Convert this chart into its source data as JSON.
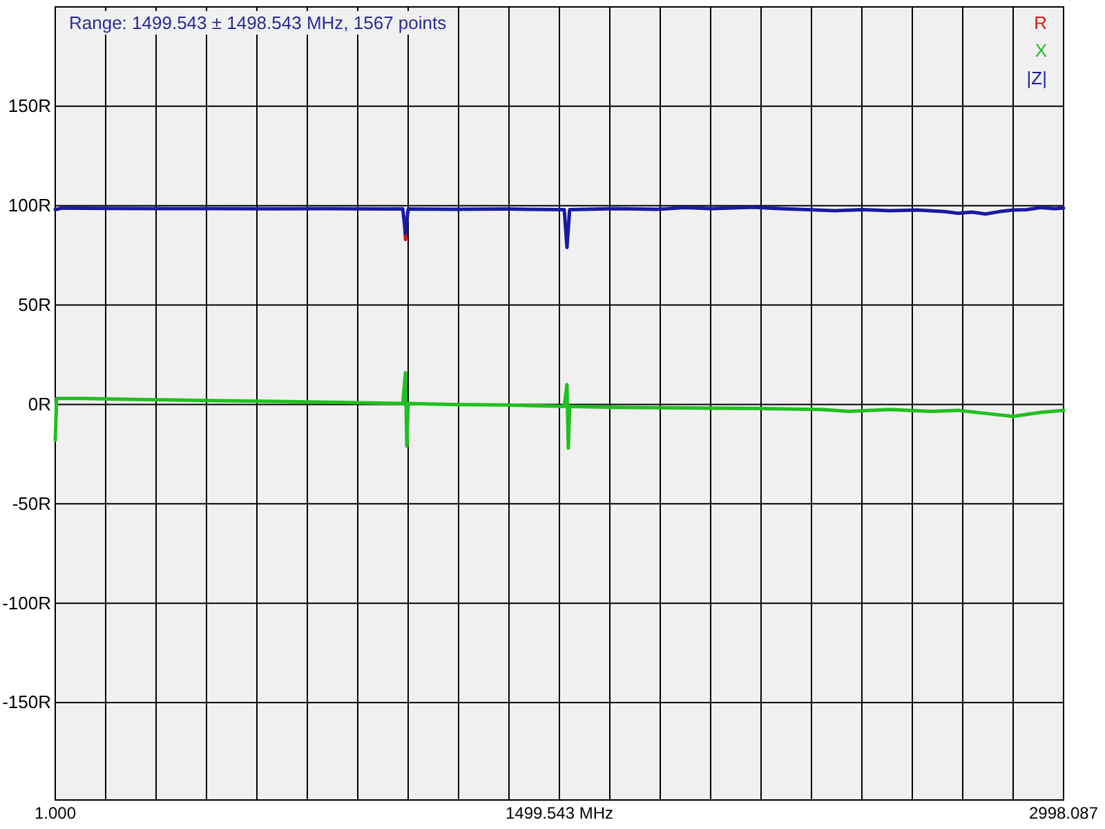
{
  "chart_data": {
    "type": "line",
    "title": "Range: 1499.543 ± 1498.543 MHz, 1567 points",
    "xlim": [
      1.0,
      2998.087
    ],
    "xticks": [
      {
        "value": 1.0,
        "label": "1.000"
      },
      {
        "value": 150.854,
        "label": null
      },
      {
        "value": 300.709,
        "label": null
      },
      {
        "value": 450.563,
        "label": null
      },
      {
        "value": 600.417,
        "label": null
      },
      {
        "value": 750.272,
        "label": null
      },
      {
        "value": 900.126,
        "label": null
      },
      {
        "value": 1049.98,
        "label": null
      },
      {
        "value": 1199.835,
        "label": null
      },
      {
        "value": 1349.689,
        "label": null
      },
      {
        "value": 1499.543,
        "label": "1499.543 MHz"
      },
      {
        "value": 1649.398,
        "label": null
      },
      {
        "value": 1799.252,
        "label": null
      },
      {
        "value": 1949.106,
        "label": null
      },
      {
        "value": 2098.961,
        "label": null
      },
      {
        "value": 2248.815,
        "label": null
      },
      {
        "value": 2398.669,
        "label": null
      },
      {
        "value": 2548.524,
        "label": null
      },
      {
        "value": 2698.378,
        "label": null
      },
      {
        "value": 2848.233,
        "label": null
      },
      {
        "value": 2998.087,
        "label": "2998.087"
      }
    ],
    "ylim": [
      -199,
      200
    ],
    "yticks": [
      {
        "value": -150,
        "label": "-150R"
      },
      {
        "value": -100,
        "label": "-100R"
      },
      {
        "value": -50,
        "label": "-50R"
      },
      {
        "value": 0,
        "label": "0R"
      },
      {
        "value": 50,
        "label": "50R"
      },
      {
        "value": 100,
        "label": "100R"
      },
      {
        "value": 150,
        "label": "150R"
      }
    ],
    "grid": true,
    "legend": "top right",
    "line_style": "solid",
    "marker": "none",
    "series": [
      {
        "name": "R",
        "color": "#d01818",
        "x": [
          1040,
          1042,
          1044
        ],
        "values": [
          88,
          83,
          88
        ]
      },
      {
        "name": "X",
        "color": "#20c020",
        "x": [
          1,
          5,
          82,
          245,
          448,
          652,
          855,
          1034,
          1042,
          1046,
          1050,
          1180,
          1343,
          1514,
          1522,
          1526,
          1530,
          1668,
          1872,
          2075,
          2278,
          2360,
          2482,
          2604,
          2685,
          2766,
          2848,
          2929,
          2998
        ],
        "values": [
          -18,
          3,
          3,
          2.5,
          2,
          1.5,
          1,
          0.5,
          16,
          -21,
          0.5,
          0,
          -0.3,
          -1,
          10,
          -22,
          -1,
          -1.5,
          -1.8,
          -2,
          -2.5,
          -3.5,
          -2.5,
          -3.5,
          -3,
          -4.5,
          -6,
          -4,
          -3
        ]
      },
      {
        "name": "|Z|",
        "color": "#1a1aa0",
        "x": [
          1,
          21,
          164,
          326,
          489,
          652,
          814,
          977,
          1034,
          1042,
          1050,
          1180,
          1343,
          1514,
          1522,
          1530,
          1668,
          1790,
          1872,
          1953,
          2075,
          2156,
          2238,
          2319,
          2400,
          2482,
          2563,
          2644,
          2685,
          2726,
          2766,
          2807,
          2848,
          2888,
          2929,
          2970,
          2998
        ],
        "values": [
          98,
          98.8,
          98.6,
          98.5,
          98.5,
          98.4,
          98.5,
          98.3,
          98.4,
          86,
          98.3,
          98.2,
          98.3,
          98,
          79,
          98,
          98.5,
          98.2,
          99,
          98.5,
          99.2,
          98.5,
          98,
          97.5,
          98,
          97.5,
          97.8,
          97,
          96.2,
          96.8,
          95.8,
          97,
          97.8,
          98,
          99,
          98.5,
          98.8
        ]
      }
    ]
  }
}
